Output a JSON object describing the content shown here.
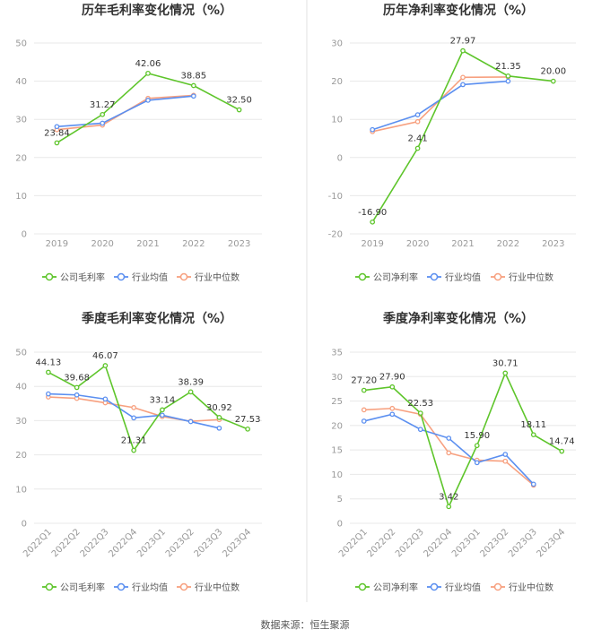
{
  "colors": {
    "company": "#5ec52b",
    "avg": "#5b8ff0",
    "median": "#f7a07f",
    "grid": "#e8e8e8",
    "divider": "#e0e0e0"
  },
  "source": "数据来源：恒生聚源",
  "chart_data": [
    {
      "type": "line",
      "title": "历年毛利率变化情况（%）",
      "categories": [
        "2019",
        "2020",
        "2021",
        "2022",
        "2023"
      ],
      "ylim": [
        0,
        50
      ],
      "yticks": [
        "0",
        "10",
        "20",
        "30",
        "40",
        "50"
      ],
      "legend_position": "bottom",
      "series": [
        {
          "name": "公司毛利率",
          "values": [
            23.84,
            31.27,
            42.06,
            38.85,
            32.5
          ],
          "labels": [
            "23.84",
            "31.27",
            "42.06",
            "38.85",
            "32.50"
          ]
        },
        {
          "name": "行业均值",
          "values": [
            28.1,
            29.0,
            35.0,
            36.1,
            null
          ]
        },
        {
          "name": "行业中位数",
          "values": [
            27.3,
            28.5,
            35.5,
            36.3,
            null
          ]
        }
      ]
    },
    {
      "type": "line",
      "title": "历年净利率变化情况（%）",
      "categories": [
        "2019",
        "2020",
        "2021",
        "2022",
        "2023"
      ],
      "ylim": [
        -20,
        30
      ],
      "yticks": [
        "-20",
        "-10",
        "0",
        "10",
        "20",
        "30"
      ],
      "legend_position": "bottom",
      "series": [
        {
          "name": "公司净利率",
          "values": [
            -16.9,
            2.41,
            27.97,
            21.35,
            20.0
          ],
          "labels": [
            "-16.90",
            "2.41",
            "27.97",
            "21.35",
            "20.00"
          ]
        },
        {
          "name": "行业均值",
          "values": [
            7.3,
            11.2,
            19.1,
            20.0,
            null
          ]
        },
        {
          "name": "行业中位数",
          "values": [
            6.8,
            9.4,
            21.0,
            21.1,
            null
          ]
        }
      ]
    },
    {
      "type": "line",
      "title": "季度毛利率变化情况（%）",
      "categories": [
        "2022Q1",
        "2022Q2",
        "2022Q3",
        "2022Q4",
        "2023Q1",
        "2023Q2",
        "2023Q3",
        "2023Q4"
      ],
      "ylim": [
        0,
        50
      ],
      "yticks": [
        "0",
        "10",
        "20",
        "30",
        "40",
        "50"
      ],
      "legend_position": "bottom",
      "series": [
        {
          "name": "公司毛利率",
          "values": [
            44.13,
            39.68,
            46.07,
            21.31,
            33.14,
            38.39,
            30.92,
            27.53
          ],
          "labels": [
            "44.13",
            "39.68",
            "46.07",
            "21.31",
            "33.14",
            "38.39",
            "30.92",
            "27.53"
          ]
        },
        {
          "name": "行业均值",
          "values": [
            37.8,
            37.5,
            36.3,
            30.8,
            31.6,
            29.7,
            27.8,
            null
          ]
        },
        {
          "name": "行业中位数",
          "values": [
            36.9,
            36.5,
            35.2,
            33.8,
            31.2,
            29.8,
            30.3,
            null
          ]
        }
      ]
    },
    {
      "type": "line",
      "title": "季度净利率变化情况（%）",
      "categories": [
        "2022Q1",
        "2022Q2",
        "2022Q3",
        "2022Q4",
        "2023Q1",
        "2023Q2",
        "2023Q3",
        "2023Q4"
      ],
      "ylim": [
        0,
        35
      ],
      "yticks": [
        "0",
        "5",
        "10",
        "15",
        "20",
        "25",
        "30",
        "35"
      ],
      "legend_position": "bottom",
      "series": [
        {
          "name": "公司净利率",
          "values": [
            27.2,
            27.9,
            22.53,
            3.42,
            15.9,
            30.71,
            18.11,
            14.74
          ],
          "labels": [
            "27.20",
            "27.90",
            "22.53",
            "3.42",
            "15.90",
            "30.71",
            "18.11",
            "14.74"
          ]
        },
        {
          "name": "行业均值",
          "values": [
            20.9,
            22.3,
            19.2,
            17.4,
            12.4,
            14.1,
            8.0,
            null
          ]
        },
        {
          "name": "行业中位数",
          "values": [
            23.2,
            23.5,
            22.3,
            14.4,
            12.9,
            12.7,
            7.8,
            null
          ]
        }
      ]
    }
  ]
}
